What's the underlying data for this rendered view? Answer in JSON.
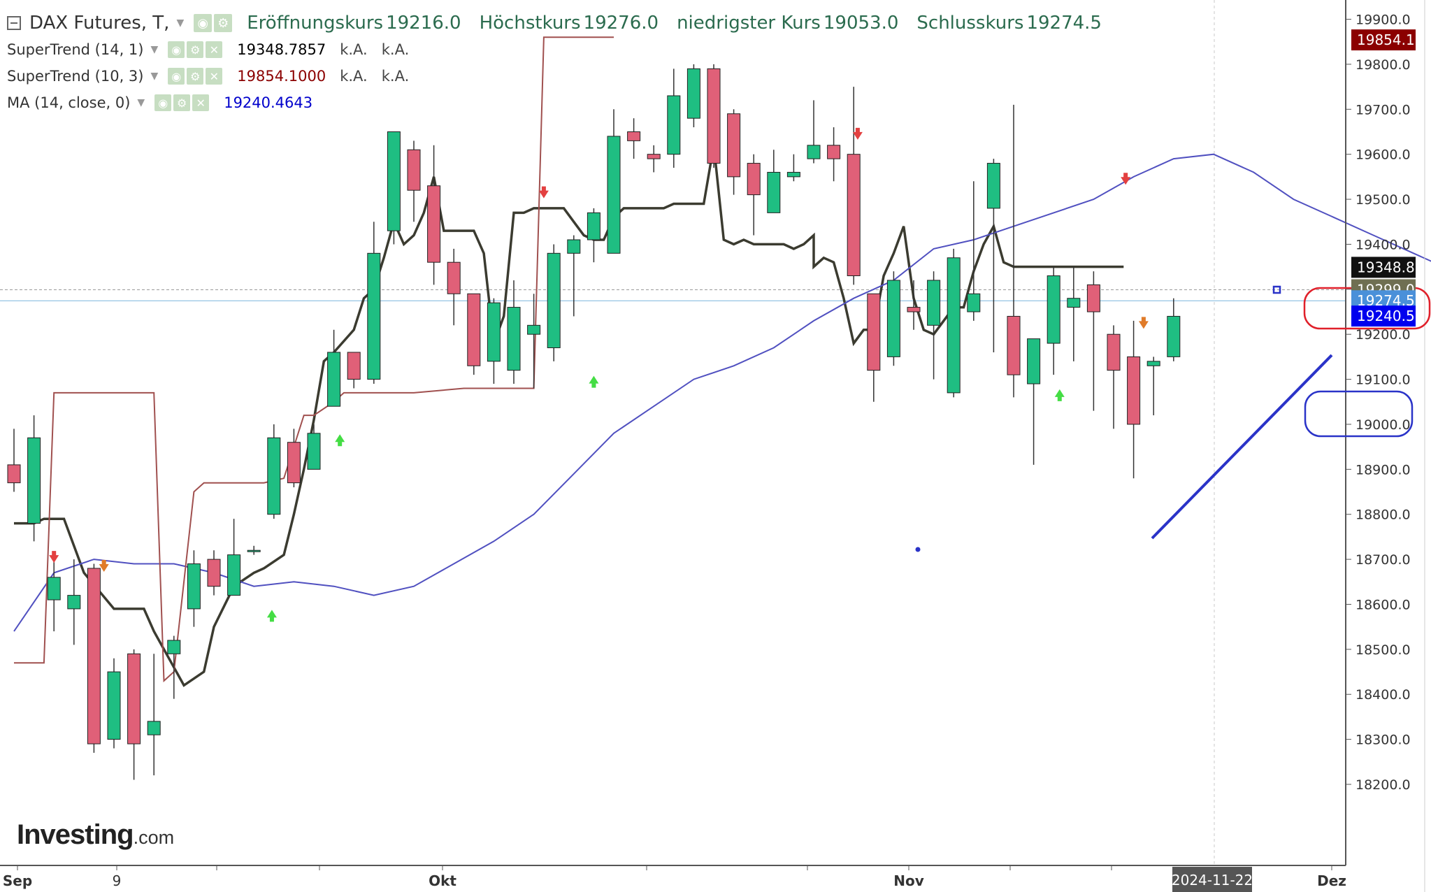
{
  "header": {
    "title": "DAX Futures, T,",
    "ohlc": [
      {
        "label": "Eröffnungskurs",
        "value": "19216.0"
      },
      {
        "label": "Höchstkurs",
        "value": "19276.0"
      },
      {
        "label": "niedrigster Kurs",
        "value": "19053.0"
      },
      {
        "label": "Schlusskurs",
        "value": "19274.5"
      }
    ]
  },
  "indicators": [
    {
      "name": "SuperTrend (14, 1)",
      "value": "19348.7857",
      "v2": "k.A.",
      "v3": "k.A.",
      "color": "#000000"
    },
    {
      "name": "SuperTrend (10, 3)",
      "value": "19854.1000",
      "v2": "k.A.",
      "v3": "k.A.",
      "color": "#8b0000"
    },
    {
      "name": "MA (14, close, 0)",
      "value": "19240.4643",
      "color": "#0000cc"
    }
  ],
  "watermark": {
    "bold": "Investing",
    "suffix": ".com"
  },
  "price_tags": [
    {
      "text": "19854.1",
      "price": 19854.1,
      "bg": "#8b0000"
    },
    {
      "text": "19348.8",
      "price": 19348.8,
      "bg": "#111111"
    },
    {
      "text": "19299.0",
      "price": 19299.0,
      "bg": "#6f6f52"
    },
    {
      "text": "19274.5",
      "price": 19274.5,
      "bg": "#4a90d9"
    },
    {
      "text": "19240.5",
      "price": 19240.5,
      "bg": "#0000ee"
    }
  ],
  "date_tag": "2024-11-22",
  "chart_data": {
    "type": "candlestick",
    "y_axis": {
      "min": 18100,
      "max": 20050,
      "ticks": [
        "18200.0",
        "18300.0",
        "18400.0",
        "18500.0",
        "18600.0",
        "18700.0",
        "18800.0",
        "18900.0",
        "19000.0",
        "19100.0",
        "19200.0",
        "19300.0",
        "19400.0",
        "19500.0",
        "19600.0",
        "19700.0",
        "19800.0",
        "19900.0",
        "20000.0"
      ]
    },
    "x_labels": [
      "Sep",
      "9",
      "Okt",
      "Nov",
      "Dez"
    ],
    "candles": [
      [
        18910,
        18870,
        18990,
        18850
      ],
      [
        18780,
        18970,
        19020,
        18740
      ],
      [
        18610,
        18660,
        18700,
        18540
      ],
      [
        18590,
        18620,
        18700,
        18510
      ],
      [
        18680,
        18290,
        18690,
        18270
      ],
      [
        18300,
        18450,
        18480,
        18280
      ],
      [
        18490,
        18290,
        18500,
        18210
      ],
      [
        18310,
        18340,
        18490,
        18220
      ],
      [
        18490,
        18520,
        18530,
        18390
      ],
      [
        18590,
        18690,
        18720,
        18550
      ],
      [
        18700,
        18640,
        18720,
        18620
      ],
      [
        18620,
        18710,
        18790,
        18650
      ],
      [
        18720,
        18720,
        18730,
        18710
      ],
      [
        18800,
        18970,
        19000,
        18790
      ],
      [
        18960,
        18870,
        18990,
        18860
      ],
      [
        18900,
        18980,
        19000,
        18920
      ],
      [
        19040,
        19160,
        19210,
        19040
      ],
      [
        19160,
        19100,
        19160,
        19080
      ],
      [
        19100,
        19380,
        19450,
        19090
      ],
      [
        19430,
        19650,
        19650,
        19400
      ],
      [
        19610,
        19520,
        19630,
        19450
      ],
      [
        19530,
        19360,
        19620,
        19310
      ],
      [
        19360,
        19290,
        19390,
        19220
      ],
      [
        19290,
        19130,
        19290,
        19110
      ],
      [
        19140,
        19270,
        19280,
        19090
      ],
      [
        19120,
        19260,
        19320,
        19090
      ],
      [
        19200,
        19220,
        19290,
        19080
      ],
      [
        19170,
        19380,
        19400,
        19140
      ],
      [
        19380,
        19410,
        19420,
        19240
      ],
      [
        19410,
        19470,
        19480,
        19360
      ],
      [
        19380,
        19640,
        19700,
        19380
      ],
      [
        19650,
        19630,
        19680,
        19590
      ],
      [
        19600,
        19590,
        19620,
        19560
      ],
      [
        19600,
        19730,
        19790,
        19570
      ],
      [
        19680,
        19790,
        19800,
        19660
      ],
      [
        19790,
        19580,
        19800,
        19570
      ],
      [
        19690,
        19550,
        19700,
        19510
      ],
      [
        19580,
        19510,
        19600,
        19420
      ],
      [
        19470,
        19560,
        19610,
        19490
      ],
      [
        19550,
        19560,
        19600,
        19540
      ],
      [
        19590,
        19620,
        19720,
        19580
      ],
      [
        19620,
        19590,
        19660,
        19540
      ],
      [
        19600,
        19330,
        19750,
        19310
      ],
      [
        19290,
        19120,
        19290,
        19050
      ],
      [
        19150,
        19320,
        19340,
        19130
      ],
      [
        19260,
        19250,
        19320,
        19210
      ],
      [
        19220,
        19320,
        19340,
        19100
      ],
      [
        19070,
        19370,
        19390,
        19060
      ],
      [
        19250,
        19290,
        19540,
        19230
      ],
      [
        19480,
        19580,
        19590,
        19160
      ],
      [
        19240,
        19110,
        19710,
        19060
      ],
      [
        19090,
        19190,
        19180,
        18910
      ],
      [
        19180,
        19330,
        19350,
        19110
      ],
      [
        19260,
        19280,
        19350,
        19140
      ],
      [
        19310,
        19250,
        19340,
        19030
      ],
      [
        19200,
        19120,
        19220,
        18990
      ],
      [
        19150,
        19000,
        19230,
        18880
      ],
      [
        19130,
        19140,
        19150,
        19020
      ],
      [
        19150,
        19240,
        19280,
        19140
      ]
    ],
    "series": [
      {
        "name": "SuperTrend (14, 1)",
        "color": "#3b3b30",
        "points": [
          [
            0,
            18780
          ],
          [
            2,
            18780
          ],
          [
            3,
            18790
          ],
          [
            5,
            18790
          ],
          [
            7,
            18670
          ],
          [
            10,
            18590
          ],
          [
            13,
            18590
          ],
          [
            14,
            18540
          ],
          [
            17,
            18420
          ],
          [
            19,
            18450
          ],
          [
            20,
            18550
          ],
          [
            22,
            18640
          ],
          [
            24,
            18670
          ],
          [
            25,
            18680
          ],
          [
            27,
            18710
          ],
          [
            28,
            18800
          ],
          [
            29,
            18900
          ],
          [
            30,
            19010
          ],
          [
            31,
            19140
          ],
          [
            32,
            19160
          ],
          [
            34,
            19210
          ],
          [
            35,
            19280
          ],
          [
            36,
            19300
          ],
          [
            37,
            19370
          ],
          [
            38,
            19450
          ],
          [
            39,
            19400
          ],
          [
            40,
            19420
          ],
          [
            41,
            19470
          ],
          [
            42,
            19550
          ],
          [
            43,
            19430
          ],
          [
            44,
            19430
          ],
          [
            45,
            19430
          ],
          [
            46,
            19430
          ],
          [
            47,
            19380
          ],
          [
            48,
            19180
          ],
          [
            49,
            19240
          ],
          [
            50,
            19470
          ],
          [
            51,
            19470
          ],
          [
            52,
            19480
          ],
          [
            53,
            19480
          ],
          [
            54,
            19480
          ],
          [
            55,
            19480
          ],
          [
            56,
            19450
          ],
          [
            57,
            19420
          ],
          [
            58,
            19410
          ],
          [
            59,
            19410
          ],
          [
            60,
            19460
          ],
          [
            61,
            19480
          ],
          [
            62,
            19480
          ],
          [
            63,
            19480
          ],
          [
            64,
            19480
          ],
          [
            65,
            19480
          ],
          [
            66,
            19490
          ],
          [
            67,
            19490
          ],
          [
            68,
            19490
          ],
          [
            69,
            19490
          ],
          [
            70,
            19620
          ],
          [
            71,
            19410
          ],
          [
            72,
            19400
          ],
          [
            73,
            19410
          ],
          [
            74,
            19400
          ],
          [
            75,
            19400
          ],
          [
            76,
            19400
          ],
          [
            77,
            19400
          ],
          [
            78,
            19390
          ],
          [
            79,
            19400
          ],
          [
            80,
            19420
          ],
          [
            80,
            19350
          ],
          [
            81,
            19370
          ],
          [
            82,
            19360
          ],
          [
            83,
            19280
          ],
          [
            84,
            19180
          ],
          [
            85,
            19210
          ],
          [
            86,
            19210
          ],
          [
            87,
            19330
          ],
          [
            88,
            19380
          ],
          [
            89,
            19440
          ],
          [
            90,
            19280
          ],
          [
            91,
            19210
          ],
          [
            92,
            19200
          ],
          [
            93,
            19230
          ],
          [
            94,
            19260
          ],
          [
            95,
            19260
          ],
          [
            96,
            19340
          ],
          [
            97,
            19400
          ],
          [
            98,
            19440
          ],
          [
            99,
            19360
          ],
          [
            100,
            19350
          ],
          [
            101,
            19350
          ],
          [
            102,
            19350
          ],
          [
            103,
            19350
          ],
          [
            104,
            19350
          ],
          [
            105,
            19350
          ],
          [
            106,
            19350
          ],
          [
            107,
            19350
          ],
          [
            108,
            19350
          ],
          [
            109,
            19350
          ],
          [
            110,
            19350
          ],
          [
            111,
            19350
          ]
        ]
      },
      {
        "name": "MA (14, close, 0)",
        "color": "#5050c0",
        "points": [
          [
            0,
            18540
          ],
          [
            2,
            18670
          ],
          [
            4,
            18700
          ],
          [
            6,
            18690
          ],
          [
            8,
            18690
          ],
          [
            10,
            18670
          ],
          [
            12,
            18640
          ],
          [
            14,
            18650
          ],
          [
            16,
            18640
          ],
          [
            18,
            18620
          ],
          [
            20,
            18640
          ],
          [
            22,
            18690
          ],
          [
            24,
            18740
          ],
          [
            26,
            18800
          ],
          [
            28,
            18890
          ],
          [
            30,
            18980
          ],
          [
            32,
            19040
          ],
          [
            34,
            19100
          ],
          [
            36,
            19130
          ],
          [
            38,
            19170
          ],
          [
            40,
            19230
          ],
          [
            42,
            19280
          ],
          [
            44,
            19320
          ],
          [
            46,
            19390
          ],
          [
            48,
            19410
          ],
          [
            50,
            19440
          ],
          [
            52,
            19470
          ],
          [
            54,
            19500
          ],
          [
            56,
            19550
          ],
          [
            58,
            19590
          ],
          [
            60,
            19600
          ],
          [
            62,
            19560
          ],
          [
            64,
            19500
          ],
          [
            66,
            19460
          ],
          [
            68,
            19420
          ],
          [
            70,
            19380
          ],
          [
            72,
            19340
          ],
          [
            74,
            19310
          ],
          [
            76,
            19280
          ],
          [
            78,
            19260
          ],
          [
            80,
            19250
          ],
          [
            82,
            19240
          ],
          [
            84,
            19240
          ]
        ]
      },
      {
        "name": "SuperTrend (10, 3)",
        "color": "#a0504f",
        "points": [
          [
            0,
            18470
          ],
          [
            3,
            18470
          ],
          [
            4,
            19070
          ],
          [
            14,
            19070
          ],
          [
            15,
            18430
          ],
          [
            16,
            18450
          ],
          [
            18,
            18850
          ],
          [
            19,
            18870
          ],
          [
            25,
            18870
          ],
          [
            27,
            18880
          ],
          [
            29,
            19020
          ],
          [
            30,
            19020
          ],
          [
            32,
            19050
          ],
          [
            33,
            19070
          ],
          [
            40,
            19070
          ],
          [
            45,
            19080
          ],
          [
            48,
            19080
          ],
          [
            49,
            19080
          ],
          [
            50,
            19080
          ],
          [
            52,
            19080
          ],
          [
            53,
            19860
          ],
          [
            60,
            19860
          ]
        ]
      }
    ]
  }
}
